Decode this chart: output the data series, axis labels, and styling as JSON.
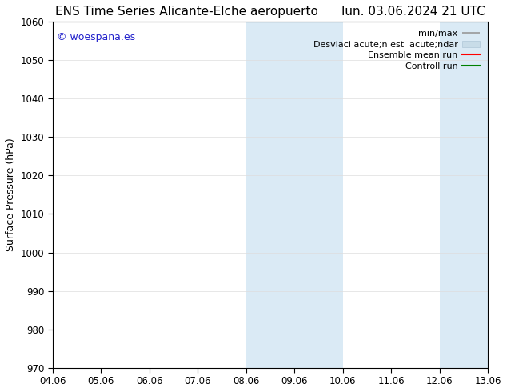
{
  "title_left": "ENS Time Series Alicante-Elche aeropuerto",
  "title_right": "lun. 03.06.2024 21 UTC",
  "ylabel": "Surface Pressure (hPa)",
  "ylim": [
    970,
    1060
  ],
  "yticks": [
    970,
    980,
    990,
    1000,
    1010,
    1020,
    1030,
    1040,
    1050,
    1060
  ],
  "xtick_labels": [
    "04.06",
    "05.06",
    "06.06",
    "07.06",
    "08.06",
    "09.06",
    "10.06",
    "11.06",
    "12.06",
    "13.06"
  ],
  "xlim": [
    0,
    9
  ],
  "shade_bands": [
    {
      "xmin": 4.0,
      "xmax": 5.0
    },
    {
      "xmin": 5.0,
      "xmax": 6.0
    },
    {
      "xmin": 8.0,
      "xmax": 9.0
    }
  ],
  "shade_color": "#daeaf5",
  "bg_color": "#ffffff",
  "watermark_text": "© woespana.es",
  "watermark_color": "#2222cc",
  "legend_labels": [
    "min/max",
    "Desviaci acute;n est  acute;ndar",
    "Ensemble mean run",
    "Controll run"
  ],
  "legend_colors": [
    "#999999",
    "#c8dce8",
    "#ff0000",
    "#008000"
  ],
  "title_fontsize": 11,
  "axis_label_fontsize": 9,
  "tick_fontsize": 8.5,
  "legend_fontsize": 8
}
